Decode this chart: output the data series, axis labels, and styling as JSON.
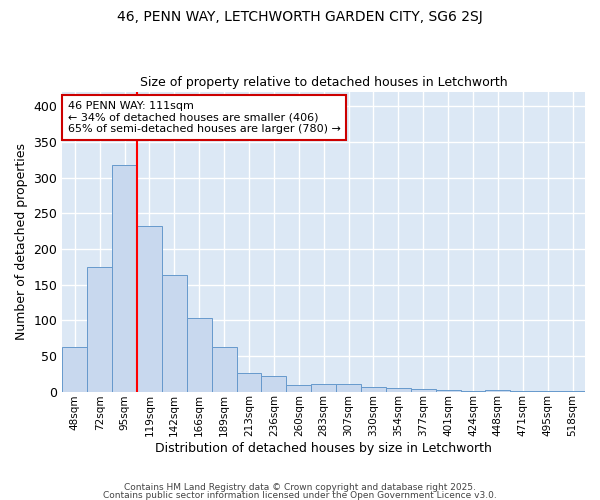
{
  "title_line1": "46, PENN WAY, LETCHWORTH GARDEN CITY, SG6 2SJ",
  "title_line2": "Size of property relative to detached houses in Letchworth",
  "xlabel": "Distribution of detached houses by size in Letchworth",
  "ylabel": "Number of detached properties",
  "bar_labels": [
    "48sqm",
    "72sqm",
    "95sqm",
    "119sqm",
    "142sqm",
    "166sqm",
    "189sqm",
    "213sqm",
    "236sqm",
    "260sqm",
    "283sqm",
    "307sqm",
    "330sqm",
    "354sqm",
    "377sqm",
    "401sqm",
    "424sqm",
    "448sqm",
    "471sqm",
    "495sqm",
    "518sqm"
  ],
  "bar_values": [
    62,
    175,
    318,
    232,
    163,
    103,
    62,
    26,
    22,
    9,
    10,
    10,
    6,
    5,
    3,
    2,
    1,
    2,
    1,
    1,
    1
  ],
  "bar_color": "#c8d8ee",
  "bar_edge_color": "#6699cc",
  "plot_bg_color": "#dce8f5",
  "fig_bg_color": "#ffffff",
  "grid_color": "#ffffff",
  "red_line_x": 2.5,
  "annotation_text_line1": "46 PENN WAY: 111sqm",
  "annotation_text_line2": "← 34% of detached houses are smaller (406)",
  "annotation_text_line3": "65% of semi-detached houses are larger (780) →",
  "annotation_box_color": "#ffffff",
  "annotation_box_edge_color": "#cc0000",
  "footer_line1": "Contains HM Land Registry data © Crown copyright and database right 2025.",
  "footer_line2": "Contains public sector information licensed under the Open Government Licence v3.0.",
  "ylim": [
    0,
    420
  ],
  "yticks": [
    0,
    50,
    100,
    150,
    200,
    250,
    300,
    350,
    400
  ]
}
